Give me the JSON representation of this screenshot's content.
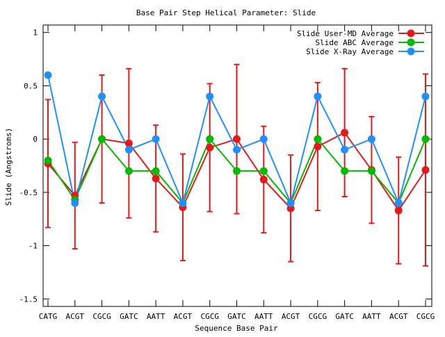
{
  "chart_data": {
    "type": "line",
    "title": "Base Pair Step Helical Parameter: Slide",
    "xlabel": "Sequence Base Pair",
    "ylabel": "Slide (Angstroms)",
    "categories": [
      "CATG",
      "ACGT",
      "CGCG",
      "GATC",
      "AATT",
      "ACGT",
      "CGCG",
      "GATC",
      "AATT",
      "ACGT",
      "CGCG",
      "GATC",
      "AATT",
      "ACGT",
      "CGCG"
    ],
    "ylim": [
      -1.57,
      1.07
    ],
    "yticks": [
      -1.5,
      -1,
      -0.5,
      0,
      0.5,
      1
    ],
    "ytick_labels": [
      "-1.5",
      "-1",
      "-0.5",
      "0",
      "0.5",
      "1"
    ],
    "grid": false,
    "legend_position": "top-right",
    "series": [
      {
        "name": "Slide User-MD Average",
        "color": "#e41a1a",
        "values": [
          -0.23,
          -0.53,
          0.0,
          -0.04,
          -0.37,
          -0.64,
          -0.08,
          0.0,
          -0.38,
          -0.65,
          -0.07,
          0.06,
          -0.29,
          -0.67,
          -0.29
        ],
        "error": [
          0.6,
          0.5,
          0.6,
          0.7,
          0.5,
          0.5,
          0.6,
          0.7,
          0.5,
          0.5,
          0.6,
          0.6,
          0.5,
          0.5,
          0.9
        ]
      },
      {
        "name": "Slide ABC Average",
        "color": "#00bb00",
        "values": [
          -0.2,
          -0.57,
          0.0,
          -0.3,
          -0.3,
          -0.6,
          0.0,
          -0.3,
          -0.3,
          -0.6,
          0.0,
          -0.3,
          -0.3,
          -0.6,
          0.0
        ]
      },
      {
        "name": "Slide X-Ray Average",
        "color": "#1e90ff",
        "values": [
          0.6,
          -0.6,
          0.4,
          -0.1,
          0.0,
          -0.6,
          0.4,
          -0.1,
          0.0,
          -0.6,
          0.4,
          -0.1,
          0.0,
          -0.6,
          0.4
        ]
      }
    ]
  }
}
